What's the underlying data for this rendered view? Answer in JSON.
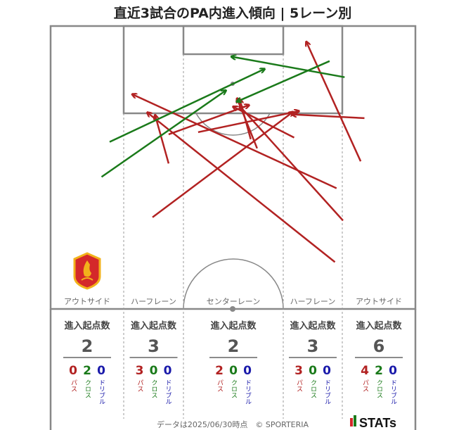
{
  "title": "直近3試合のPA内進入傾向 | 5レーン別",
  "footer": "データは2025/06/30時点　© SPORTERIA",
  "brand": "STATs",
  "colors": {
    "pass": "#b22222",
    "cross": "#1a7a1a",
    "dribble": "#1a1aaa",
    "pitch_line": "#888888"
  },
  "lanes": [
    {
      "name": "アウトサイド",
      "stat_label": "進入起点数",
      "total": "2",
      "pass": "0",
      "cross": "2",
      "dribble": "0",
      "pass_label": "パス",
      "cross_label": "クロス",
      "dribble_label": "ドリブル"
    },
    {
      "name": "ハーフレーン",
      "stat_label": "進入起点数",
      "total": "3",
      "pass": "3",
      "cross": "0",
      "dribble": "0",
      "pass_label": "パス",
      "cross_label": "クロス",
      "dribble_label": "ドリブル"
    },
    {
      "name": "センターレーン",
      "stat_label": "進入起点数",
      "total": "2",
      "pass": "2",
      "cross": "0",
      "dribble": "0",
      "pass_label": "パス",
      "cross_label": "クロス",
      "dribble_label": "ドリブル"
    },
    {
      "name": "ハーフレーン",
      "stat_label": "進入起点数",
      "total": "3",
      "pass": "3",
      "cross": "0",
      "dribble": "0",
      "pass_label": "パス",
      "cross_label": "クロス",
      "dribble_label": "ドリブル"
    },
    {
      "name": "アウトサイド",
      "stat_label": "進入起点数",
      "total": "6",
      "pass": "4",
      "cross": "2",
      "dribble": "0",
      "pass_label": "パス",
      "cross_label": "クロス",
      "dribble_label": "ドリブル"
    }
  ],
  "chart_data": {
    "type": "scatter",
    "x_range": [
      0,
      68
    ],
    "y_range": [
      52.5,
      105
    ],
    "x_meaning": "pitch width (m)",
    "y_meaning": "distance from own goal line (m), attacking upward",
    "series": [
      {
        "type": "pass",
        "arrows": [
          {
            "x1": 54.5,
            "y1": 68.9,
            "x2": 35.3,
            "y2": 90.1
          },
          {
            "x1": 53.3,
            "y1": 74.9,
            "x2": 15.3,
            "y2": 92.3
          },
          {
            "x1": 38.5,
            "y1": 82.3,
            "x2": 34.8,
            "y2": 91.5
          },
          {
            "x1": 58.5,
            "y1": 87.9,
            "x2": 45.1,
            "y2": 88.6
          },
          {
            "x1": 22.0,
            "y1": 84.9,
            "x2": 36.9,
            "y2": 90.3
          },
          {
            "x1": 27.5,
            "y1": 85.3,
            "x2": 46.2,
            "y2": 89.2
          },
          {
            "x1": 37.3,
            "y1": 84.0,
            "x2": 35.3,
            "y2": 91.3
          },
          {
            "x1": 22.0,
            "y1": 79.5,
            "x2": 19.5,
            "y2": 88.4
          },
          {
            "x1": 19.0,
            "y1": 69.5,
            "x2": 45.1,
            "y2": 89.0
          },
          {
            "x1": 45.4,
            "y1": 84.3,
            "x2": 34.1,
            "y2": 90.0
          },
          {
            "x1": 57.8,
            "y1": 79.9,
            "x2": 47.7,
            "y2": 102.0
          },
          {
            "x1": 53.0,
            "y1": 61.2,
            "x2": 18.1,
            "y2": 88.9
          }
        ]
      },
      {
        "type": "cross",
        "arrows": [
          {
            "x1": 11.0,
            "y1": 83.5,
            "x2": 39.8,
            "y2": 97.0
          },
          {
            "x1": 9.5,
            "y1": 77.0,
            "x2": 32.6,
            "y2": 93.0
          },
          {
            "x1": 52.0,
            "y1": 98.5,
            "x2": 34.8,
            "y2": 91.0
          },
          {
            "x1": 54.8,
            "y1": 95.5,
            "x2": 33.8,
            "y2": 99.3
          }
        ]
      },
      {
        "type": "dribble",
        "arrows": []
      }
    ]
  }
}
